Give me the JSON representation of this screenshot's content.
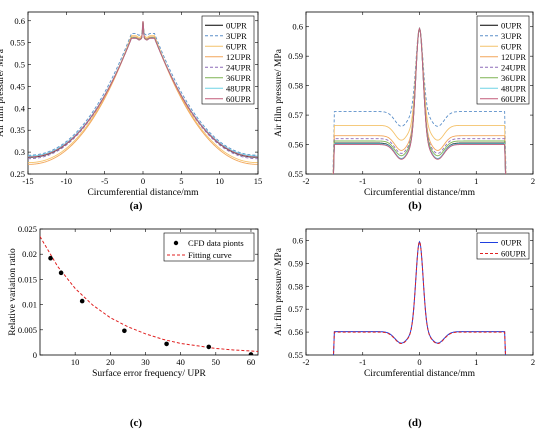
{
  "chart_data": [
    {
      "panel": "a",
      "type": "line",
      "label": "(a)",
      "xlabel": "Circumferential distance/mm",
      "ylabel": "Air film pressure/ MPa",
      "xlim": [
        -15,
        15
      ],
      "ylim": [
        0.25,
        0.62
      ],
      "xticks": [
        -15,
        -10,
        -5,
        0,
        5,
        10,
        15
      ],
      "yticks": [
        0.25,
        0.3,
        0.35,
        0.4,
        0.45,
        0.5,
        0.55,
        0.6
      ],
      "legend_position": "top-right",
      "series": [
        {
          "name": "0UPR",
          "color": "#000000",
          "dash": "",
          "edge": 0.288,
          "plateau": 0.561
        },
        {
          "name": "3UPR",
          "color": "#5b8fc9",
          "dash": "3,2",
          "edge": 0.293,
          "plateau": 0.571
        },
        {
          "name": "6UPR",
          "color": "#f4c26b",
          "dash": "",
          "edge": 0.276,
          "plateau": 0.566
        },
        {
          "name": "12UPR",
          "color": "#f2a65a",
          "dash": "",
          "edge": 0.272,
          "plateau": 0.563
        },
        {
          "name": "24UPR",
          "color": "#8e6bb8",
          "dash": "3,2",
          "edge": 0.285,
          "plateau": 0.562
        },
        {
          "name": "36UPR",
          "color": "#7fb352",
          "dash": "",
          "edge": 0.289,
          "plateau": 0.561
        },
        {
          "name": "48UPR",
          "color": "#6fd3e6",
          "dash": "",
          "edge": 0.291,
          "plateau": 0.56
        },
        {
          "name": "60UPR",
          "color": "#c25a78",
          "dash": "",
          "edge": 0.289,
          "plateau": 0.56
        }
      ]
    },
    {
      "panel": "b",
      "type": "line",
      "label": "(b)",
      "xlabel": "Circumferential distance/mm",
      "ylabel": "Air film pressure/ MPa",
      "xlim": [
        -2,
        2
      ],
      "ylim": [
        0.55,
        0.605
      ],
      "xticks": [
        -2,
        -1,
        0,
        1,
        2
      ],
      "yticks": [
        0.55,
        0.56,
        0.57,
        0.58,
        0.59,
        0.6
      ],
      "legend_position": "top-right",
      "series": [
        {
          "name": "0UPR",
          "plateau": 0.5605,
          "dip": 0.5552
        },
        {
          "name": "3UPR",
          "plateau": 0.5712,
          "dip": 0.5662
        },
        {
          "name": "6UPR",
          "plateau": 0.5665,
          "dip": 0.5615
        },
        {
          "name": "12UPR",
          "plateau": 0.563,
          "dip": 0.558
        },
        {
          "name": "24UPR",
          "plateau": 0.562,
          "dip": 0.557
        },
        {
          "name": "36UPR",
          "plateau": 0.5612,
          "dip": 0.5562
        },
        {
          "name": "48UPR",
          "plateau": 0.5603,
          "dip": 0.5553
        },
        {
          "name": "60UPR",
          "plateau": 0.56,
          "dip": 0.555
        }
      ],
      "peak": 0.5995
    },
    {
      "panel": "c",
      "type": "scatter",
      "label": "(c)",
      "xlabel": "Surface error frequency/ UPR",
      "ylabel": "Relative variation ratio",
      "xlim": [
        0,
        62
      ],
      "ylim": [
        0,
        0.025
      ],
      "xticks": [
        10,
        20,
        30,
        40,
        50,
        60
      ],
      "yticks": [
        0,
        0.005,
        0.01,
        0.015,
        0.02,
        0.025
      ],
      "legend_position": "top-right",
      "series": [
        {
          "name": "CFD data pionts",
          "x": [
            3,
            6,
            12,
            24,
            36,
            48,
            60
          ],
          "y": [
            0.0192,
            0.0163,
            0.0107,
            0.0048,
            0.0022,
            0.0016,
            0.0001
          ]
        },
        {
          "name": "Fitting curve",
          "x": [
            0,
            5,
            10,
            15,
            20,
            25,
            30,
            35,
            40,
            45,
            50,
            55,
            60,
            62
          ],
          "y": [
            0.0235,
            0.0176,
            0.0132,
            0.0099,
            0.0074,
            0.0056,
            0.0042,
            0.0031,
            0.0023,
            0.0018,
            0.0013,
            0.001,
            0.0008,
            0.0007
          ]
        }
      ]
    },
    {
      "panel": "d",
      "type": "line",
      "label": "(d)",
      "xlabel": "Circumferential distance/mm",
      "ylabel": "Air film pressure/ MPa",
      "xlim": [
        -2,
        2
      ],
      "ylim": [
        0.55,
        0.605
      ],
      "xticks": [
        -2,
        -1,
        0,
        1,
        2
      ],
      "yticks": [
        0.55,
        0.56,
        0.57,
        0.58,
        0.59,
        0.6
      ],
      "legend_position": "top-right",
      "series": [
        {
          "name": "0UPR",
          "color": "#1f3fdf",
          "plateau": 0.5602,
          "dip": 0.5552
        },
        {
          "name": "60UPR",
          "color": "#e02020",
          "plateau": 0.56,
          "dip": 0.555
        }
      ],
      "peak": 0.5995
    }
  ],
  "colors": {
    "b_series": [
      "#000000",
      "#5b8fc9",
      "#f4c26b",
      "#f2a65a",
      "#8e6bb8",
      "#7fb352",
      "#6fd3e6",
      "#c25a78"
    ],
    "c_points": "#000000",
    "c_fit": "#e02020"
  }
}
